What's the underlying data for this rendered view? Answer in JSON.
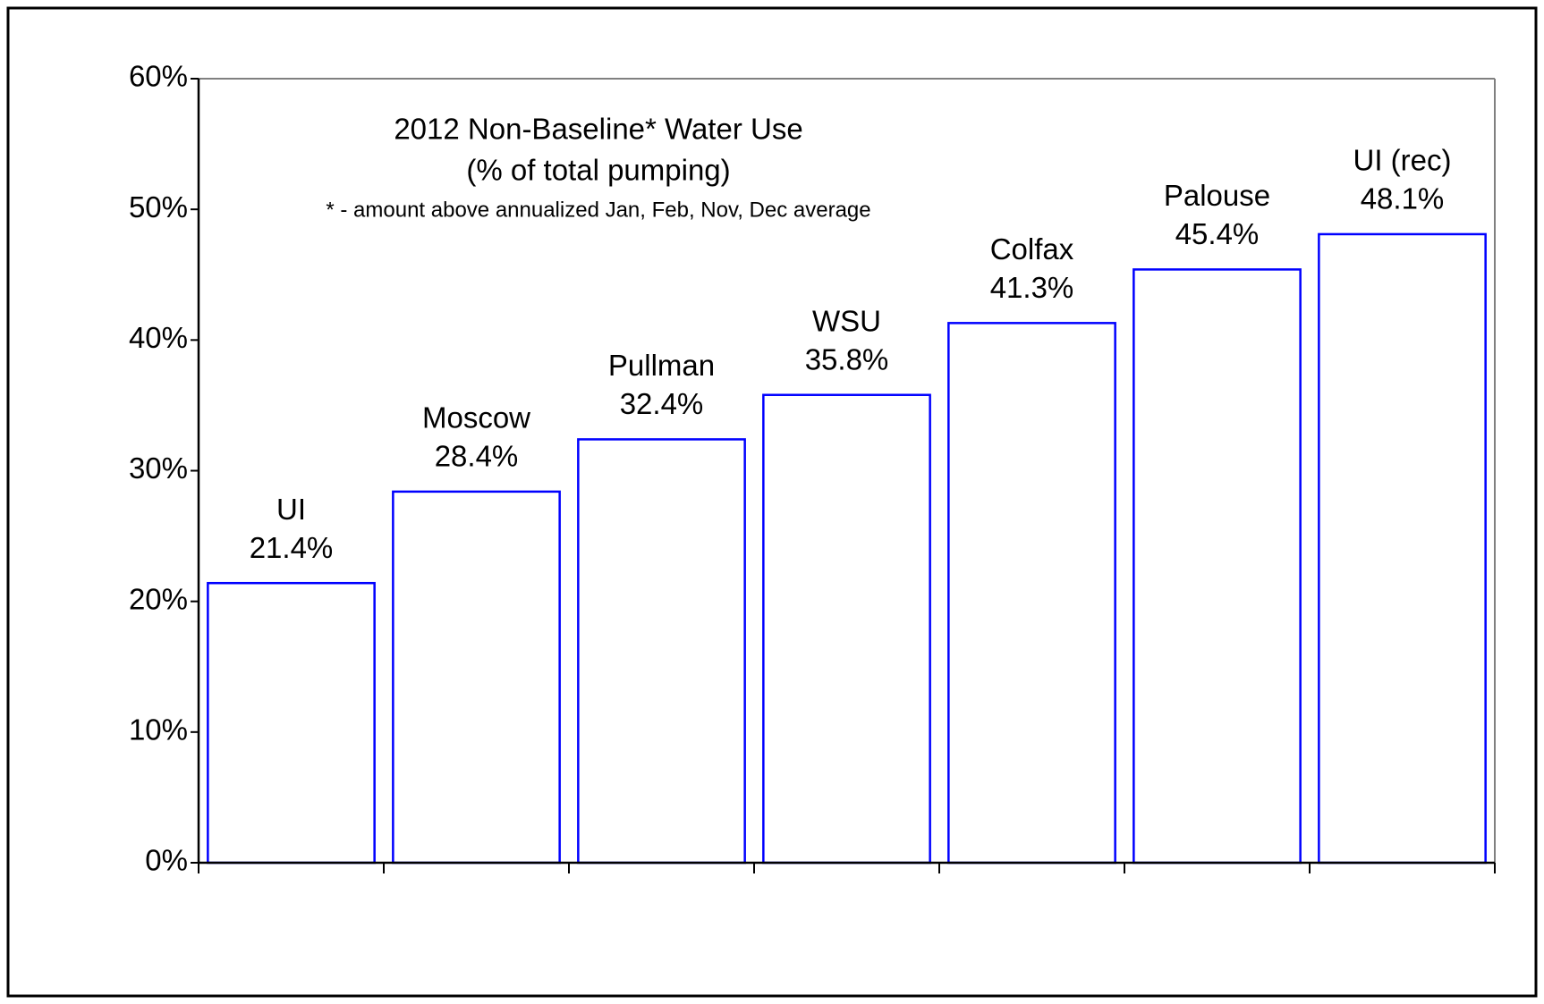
{
  "chart_data": {
    "type": "bar",
    "title": "2012 Non-Baseline* Water Use",
    "subtitle": "(% of total pumping)",
    "annotations": [
      "* - amount above annualized  Jan, Feb,  Nov, Dec average"
    ],
    "categories": [
      "UI",
      "Moscow",
      "Pullman",
      "WSU",
      "Colfax",
      "Palouse",
      "UI (rec)"
    ],
    "values": [
      21.4,
      28.4,
      32.4,
      35.8,
      41.3,
      45.4,
      48.1
    ],
    "value_labels": [
      "21.4%",
      "28.4%",
      "32.4%",
      "35.8%",
      "41.3%",
      "45.4%",
      "48.1%"
    ],
    "color": "#0000ff",
    "ylim": [
      0,
      60
    ],
    "yticks": [
      {
        "value": 0,
        "label": "0%"
      },
      {
        "value": 10,
        "label": "10%"
      },
      {
        "value": 20,
        "label": "20%"
      },
      {
        "value": 30,
        "label": "30%"
      },
      {
        "value": 40,
        "label": "40%"
      },
      {
        "value": 50,
        "label": "50%"
      },
      {
        "value": 60,
        "label": "60%"
      }
    ],
    "grid": false
  }
}
